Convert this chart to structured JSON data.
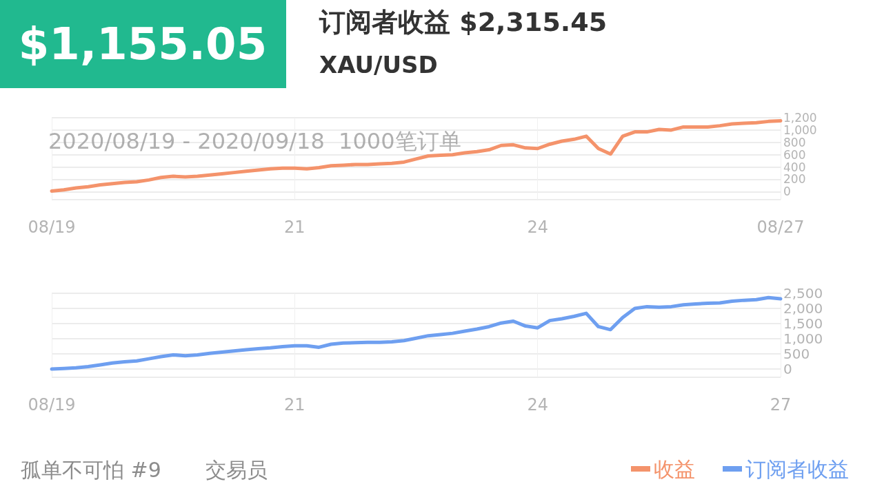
{
  "chart_data": [
    {
      "type": "line",
      "title": "订阅者收益 $2,315.45",
      "subtitle": "XAU/USD",
      "annotations": [
        "$1,155.05",
        "2020/08/19 - 2020/09/18  1000笔订单"
      ],
      "categories": [
        "08/19",
        null,
        null,
        null,
        null,
        null,
        null,
        null,
        null,
        null,
        null,
        null,
        null,
        null,
        null,
        null,
        null,
        null,
        null,
        null,
        "21",
        null,
        null,
        null,
        null,
        null,
        null,
        null,
        null,
        null,
        null,
        null,
        null,
        null,
        null,
        null,
        null,
        null,
        null,
        null,
        "24",
        null,
        null,
        null,
        null,
        null,
        null,
        null,
        null,
        null,
        null,
        null,
        null,
        null,
        null,
        null,
        null,
        null,
        null,
        null,
        "08/27"
      ],
      "series": [
        {
          "name": "收益",
          "color": "#f4936b",
          "values": [
            10,
            30,
            60,
            80,
            110,
            130,
            150,
            160,
            190,
            230,
            250,
            240,
            250,
            270,
            290,
            310,
            330,
            350,
            370,
            380,
            380,
            370,
            390,
            420,
            430,
            440,
            440,
            450,
            460,
            480,
            530,
            580,
            590,
            600,
            630,
            650,
            680,
            750,
            760,
            710,
            700,
            770,
            820,
            850,
            900,
            700,
            610,
            900,
            970,
            970,
            1010,
            1000,
            1050,
            1050,
            1050,
            1070,
            1100,
            1110,
            1120,
            1140,
            1150
          ]
        }
      ],
      "ylim": [
        -130,
        1200
      ],
      "yticks": [
        0,
        200,
        400,
        600,
        800,
        {
          "value": 1000,
          "label": "1,000"
        },
        {
          "value": 1200,
          "label": "1,200"
        }
      ],
      "grid": true,
      "legend": "bottom right",
      "line_style": "solid",
      "marker": "none"
    },
    {
      "type": "line",
      "annotations": [
        "孤单不可怕 #9",
        "交易员"
      ],
      "categories": [
        "08/19",
        null,
        null,
        null,
        null,
        null,
        null,
        null,
        null,
        null,
        null,
        null,
        null,
        null,
        null,
        null,
        null,
        null,
        null,
        null,
        "21",
        null,
        null,
        null,
        null,
        null,
        null,
        null,
        null,
        null,
        null,
        null,
        null,
        null,
        null,
        null,
        null,
        null,
        null,
        null,
        "24",
        null,
        null,
        null,
        null,
        null,
        null,
        null,
        null,
        null,
        null,
        null,
        null,
        null,
        null,
        null,
        null,
        null,
        null,
        null,
        "27"
      ],
      "series": [
        {
          "name": "订阅者收益",
          "color": "#6e9ff0",
          "values": [
            0,
            20,
            40,
            80,
            140,
            200,
            240,
            270,
            340,
            410,
            470,
            440,
            470,
            520,
            560,
            600,
            640,
            670,
            700,
            740,
            770,
            770,
            720,
            820,
            860,
            870,
            880,
            880,
            900,
            940,
            1020,
            1100,
            1140,
            1180,
            1250,
            1320,
            1400,
            1520,
            1580,
            1420,
            1360,
            1600,
            1660,
            1740,
            1840,
            1400,
            1300,
            1700,
            2000,
            2060,
            2040,
            2060,
            2120,
            2150,
            2170,
            2180,
            2240,
            2270,
            2290,
            2360,
            2320
          ]
        }
      ],
      "ylim": [
        -270,
        2500
      ],
      "yticks": [
        0,
        500,
        {
          "value": 1000,
          "label": "1,000"
        },
        {
          "value": 1500,
          "label": "1,500"
        },
        {
          "value": 2000,
          "label": "2,000"
        },
        {
          "value": 2500,
          "label": "2,500"
        }
      ],
      "grid": true,
      "legend": "bottom right",
      "line_style": "solid",
      "marker": "none"
    }
  ]
}
